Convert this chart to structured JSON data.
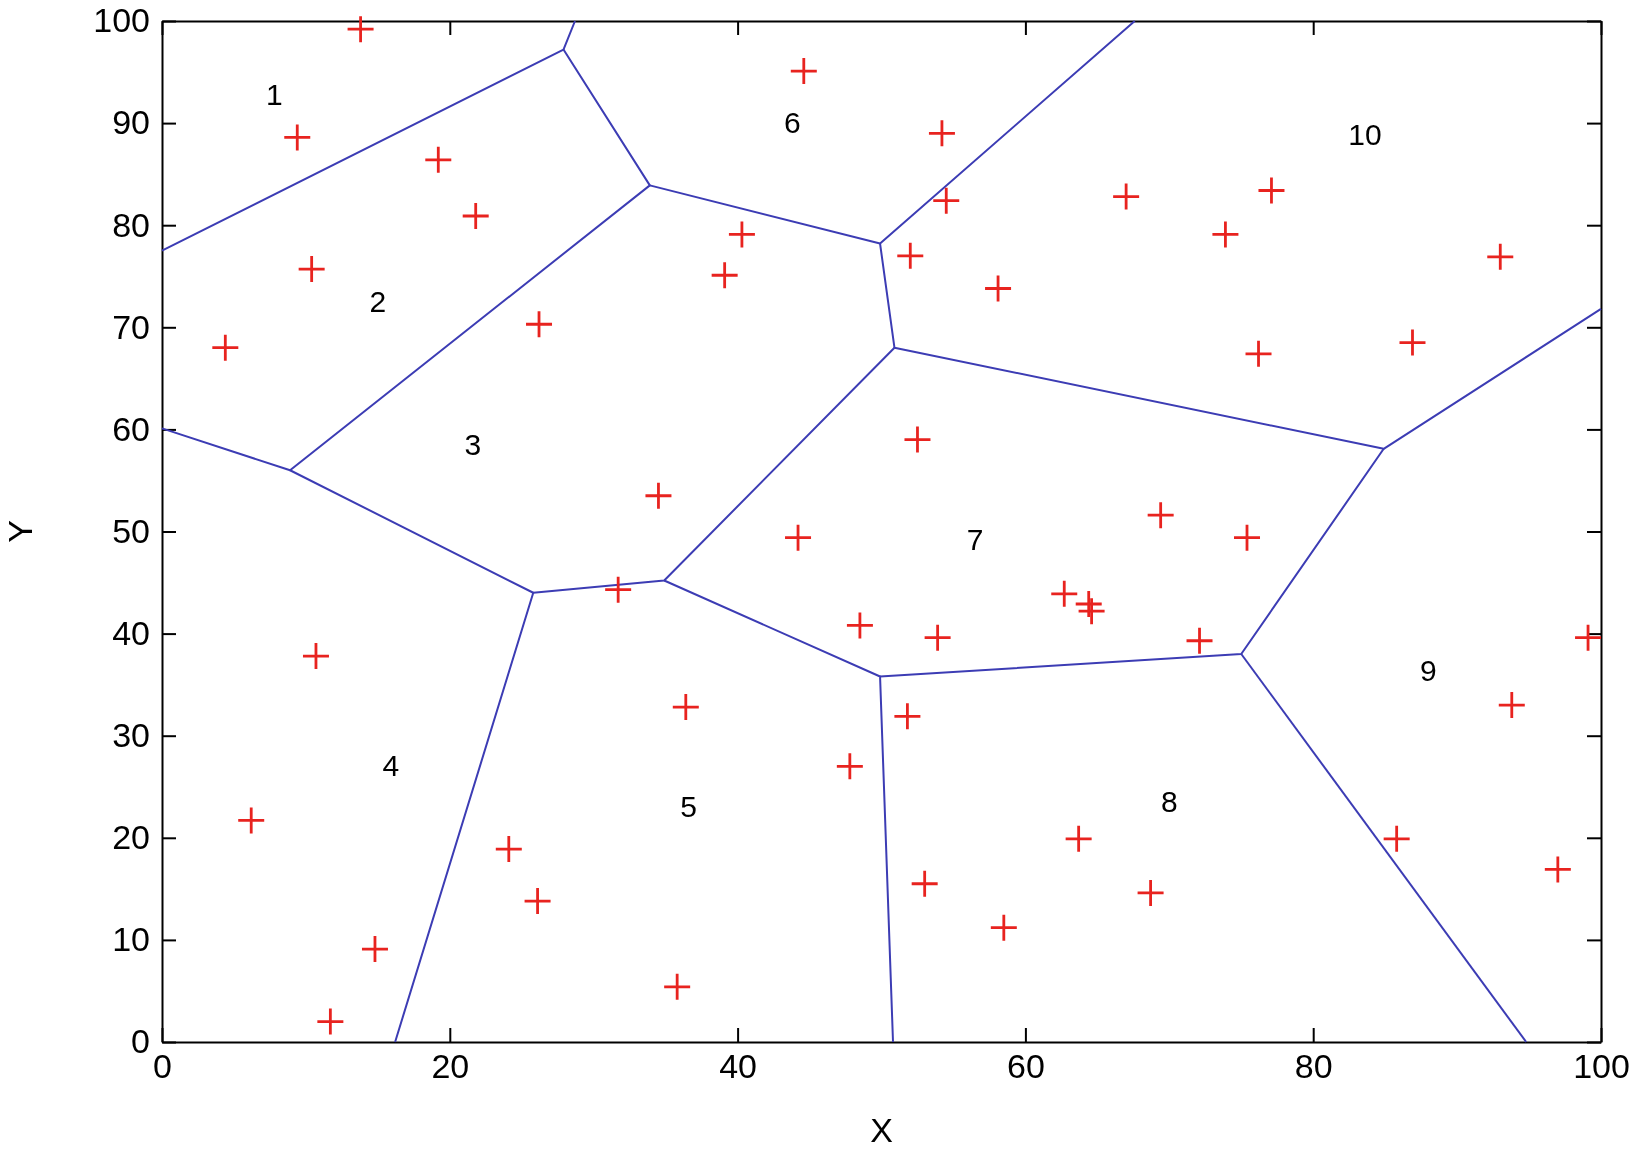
{
  "chart_data": {
    "type": "scatter",
    "xlabel": "X",
    "ylabel": "Y",
    "xlim": [
      0,
      100
    ],
    "ylim": [
      0,
      100
    ],
    "xticks": [
      0,
      20,
      40,
      60,
      80,
      100
    ],
    "yticks": [
      0,
      10,
      20,
      30,
      40,
      50,
      60,
      70,
      80,
      90,
      100
    ],
    "grid": false,
    "series": [
      {
        "color": "#e8231f",
        "marker": "cross",
        "x": [
          13.8,
          9.4,
          44.6,
          19.2,
          21.8,
          54.2,
          54.5,
          67.0,
          77.1,
          73.9,
          93.0,
          40.3,
          52.0,
          39.1,
          58.1,
          10.4,
          26.2,
          4.4,
          86.9,
          76.2,
          52.5,
          34.5,
          44.2,
          69.4,
          75.4,
          31.7,
          62.7,
          64.4,
          64.6,
          10.7,
          48.5,
          53.9,
          72.1,
          99.1,
          36.4,
          51.8,
          93.8,
          47.8,
          6.2,
          24.1,
          63.7,
          85.8,
          97.0,
          26.1,
          53.0,
          68.7,
          58.5,
          14.8,
          35.8,
          11.7
        ],
        "values": [
          99.2,
          88.6,
          95.1,
          86.4,
          80.9,
          89.0,
          82.4,
          82.8,
          83.4,
          79.1,
          76.9,
          79.1,
          77.0,
          75.1,
          73.8,
          75.7,
          70.3,
          68.0,
          68.5,
          67.4,
          59.0,
          53.5,
          49.4,
          51.6,
          49.4,
          44.3,
          43.9,
          42.9,
          42.2,
          37.8,
          40.8,
          39.6,
          39.3,
          39.6,
          32.8,
          31.9,
          33.0,
          27.0,
          21.7,
          18.9,
          19.9,
          19.9,
          16.9,
          13.8,
          15.5,
          14.6,
          11.2,
          9.1,
          5.4,
          2.0
        ]
      },
      {
        "type": "line",
        "color": "#3c3cb4",
        "marker": "none",
        "line_style": "solid",
        "x": [
          0,
          27.9,
          28.7
        ],
        "values": [
          77.5,
          97.2,
          100
        ]
      },
      {
        "type": "line",
        "color": "#3c3cb4",
        "marker": "none",
        "line_style": "solid",
        "x": [
          27.9,
          33.9,
          8.9,
          0
        ],
        "values": [
          97.2,
          83.9,
          56.0,
          60.1
        ]
      },
      {
        "type": "line",
        "color": "#3c3cb4",
        "marker": "none",
        "line_style": "solid",
        "x": [
          33.9,
          49.9,
          67.6
        ],
        "values": [
          83.9,
          78.2,
          100
        ]
      },
      {
        "type": "line",
        "color": "#3c3cb4",
        "marker": "none",
        "line_style": "solid",
        "x": [
          49.9,
          50.9,
          84.9,
          100
        ],
        "values": [
          78.2,
          68.0,
          58.1,
          71.8
        ]
      },
      {
        "type": "line",
        "color": "#3c3cb4",
        "marker": "none",
        "line_style": "solid",
        "x": [
          8.9,
          25.8,
          16.2
        ],
        "values": [
          56.0,
          44.0,
          0
        ]
      },
      {
        "type": "line",
        "color": "#3c3cb4",
        "marker": "none",
        "line_style": "solid",
        "x": [
          25.8,
          34.9,
          50.9
        ],
        "values": [
          44.0,
          45.2,
          68.0
        ]
      },
      {
        "type": "line",
        "color": "#3c3cb4",
        "marker": "none",
        "line_style": "solid",
        "x": [
          34.9,
          49.9,
          50.8
        ],
        "values": [
          45.2,
          35.8,
          0
        ]
      },
      {
        "type": "line",
        "color": "#3c3cb4",
        "marker": "none",
        "line_style": "solid",
        "x": [
          49.9,
          75.0,
          84.9
        ],
        "values": [
          35.8,
          38.0,
          58.1
        ]
      },
      {
        "type": "line",
        "color": "#3c3cb4",
        "marker": "none",
        "line_style": "solid",
        "x": [
          75.0,
          94.8
        ],
        "values": [
          38.0,
          0
        ]
      }
    ],
    "annotations": [
      "1",
      "2",
      "3",
      "4",
      "5",
      "6",
      "7",
      "8",
      "9",
      "10"
    ]
  }
}
